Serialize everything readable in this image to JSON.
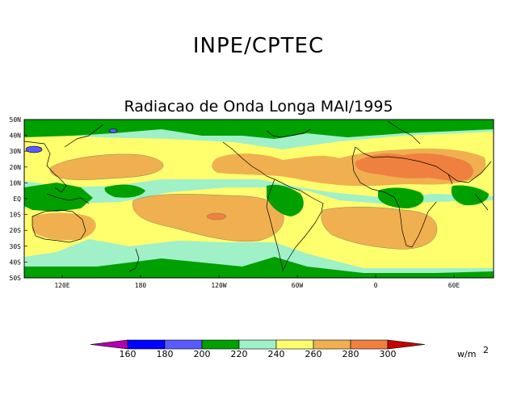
{
  "header": {
    "org": "INPE/CPTEC",
    "title": "Radiacao de Onda Longa MAI/1995"
  },
  "map": {
    "lat_labels": [
      "50N",
      "40N",
      "30N",
      "20N",
      "10N",
      "EQ",
      "10S",
      "20S",
      "30S",
      "40S",
      "50S"
    ],
    "lon_labels": [
      "120E",
      "180",
      "120W",
      "60W",
      "0",
      "60E"
    ]
  },
  "colorbar": {
    "values": [
      "160",
      "180",
      "200",
      "220",
      "240",
      "260",
      "280",
      "300"
    ],
    "units": "w/m",
    "units_exp": "2",
    "colors": [
      "#b000b0",
      "#0000ff",
      "#5a5aff",
      "#00a000",
      "#a0f0c8",
      "#ffff6e",
      "#f0b050",
      "#f08040",
      "#c80000"
    ]
  }
}
